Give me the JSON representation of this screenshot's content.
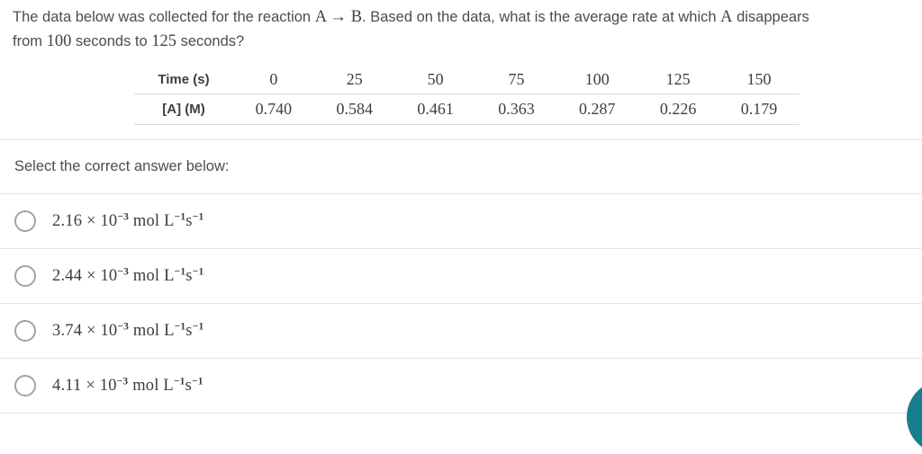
{
  "question": {
    "line1": [
      "The data below was collected for the reaction ",
      "A → B",
      ". Based on the data, what is the average rate at which ",
      "A",
      " disappears"
    ],
    "line2": [
      "from ",
      "100",
      " seconds to ",
      "125",
      " seconds?"
    ]
  },
  "table": {
    "rows": [
      {
        "label": "Time (s)",
        "values": [
          "0",
          "25",
          "50",
          "75",
          "100",
          "125",
          "150"
        ]
      },
      {
        "label": "[A] (M)",
        "values": [
          "0.740",
          "0.584",
          "0.461",
          "0.363",
          "0.287",
          "0.226",
          "0.179"
        ]
      }
    ]
  },
  "prompt": "Select the correct answer below:",
  "options": [
    {
      "mantissa": "2.16 × 10",
      "exponent": "−3",
      "unit_a": " mol L",
      "unit_a_exp": "−1",
      "unit_b": "s",
      "unit_b_exp": "−1"
    },
    {
      "mantissa": "2.44 × 10",
      "exponent": "−3",
      "unit_a": " mol L",
      "unit_a_exp": "−1",
      "unit_b": "s",
      "unit_b_exp": "−1"
    },
    {
      "mantissa": "3.74 × 10",
      "exponent": "−3",
      "unit_a": " mol L",
      "unit_a_exp": "−1",
      "unit_b": "s",
      "unit_b_exp": "−1"
    },
    {
      "mantissa": "4.11 × 10",
      "exponent": "−3",
      "unit_a": " mol L",
      "unit_a_exp": "−1",
      "unit_b": "s",
      "unit_b_exp": "−1"
    }
  ],
  "fab": {
    "icon": "help-fab",
    "color": "#167e8d"
  },
  "colors": {
    "divider": "#e4e4e4",
    "text": "#4a4d50",
    "accent_teal": "#167e8d"
  }
}
